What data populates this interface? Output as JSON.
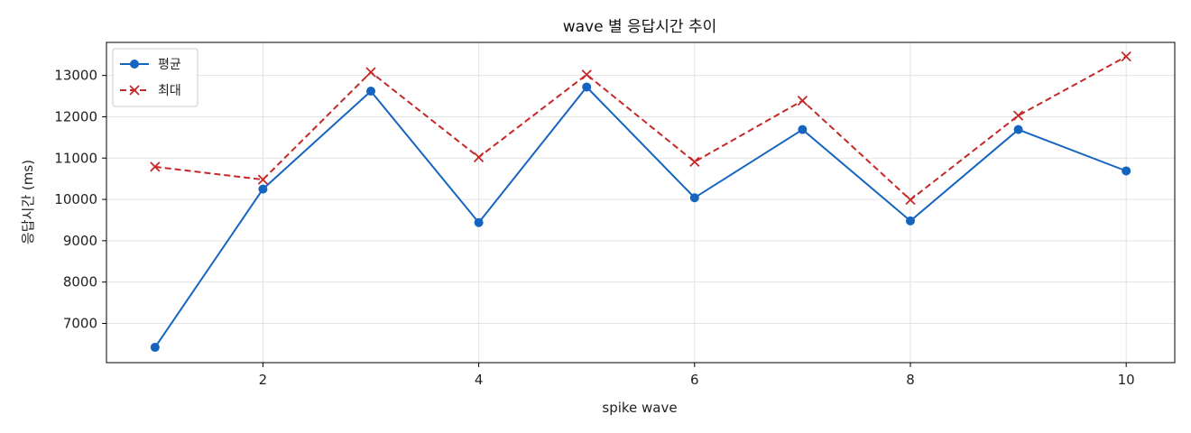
{
  "chart_data": {
    "type": "line",
    "title": "wave 별 응답시간 추이",
    "xlabel": "spike wave",
    "ylabel": "응답시간 (ms)",
    "x": [
      1,
      2,
      3,
      4,
      5,
      6,
      7,
      8,
      9,
      10
    ],
    "xlim": [
      0.55,
      10.45
    ],
    "ylim": [
      6050,
      13800
    ],
    "xticks": [
      2,
      4,
      6,
      8,
      10
    ],
    "yticks": [
      7000,
      8000,
      9000,
      10000,
      11000,
      12000,
      13000
    ],
    "grid": true,
    "legend_position": "top-left",
    "series": [
      {
        "name": "평균",
        "color": "#1565c0",
        "line_style": "solid",
        "marker": "circle",
        "values": [
          6420,
          10250,
          12620,
          9440,
          12720,
          10040,
          11690,
          9480,
          11690,
          10690
        ]
      },
      {
        "name": "최대",
        "color": "#c62828",
        "line_style": "dashed",
        "marker": "x",
        "values": [
          10790,
          10480,
          13080,
          11020,
          13020,
          10910,
          12390,
          9990,
          12030,
          13460
        ]
      }
    ]
  }
}
